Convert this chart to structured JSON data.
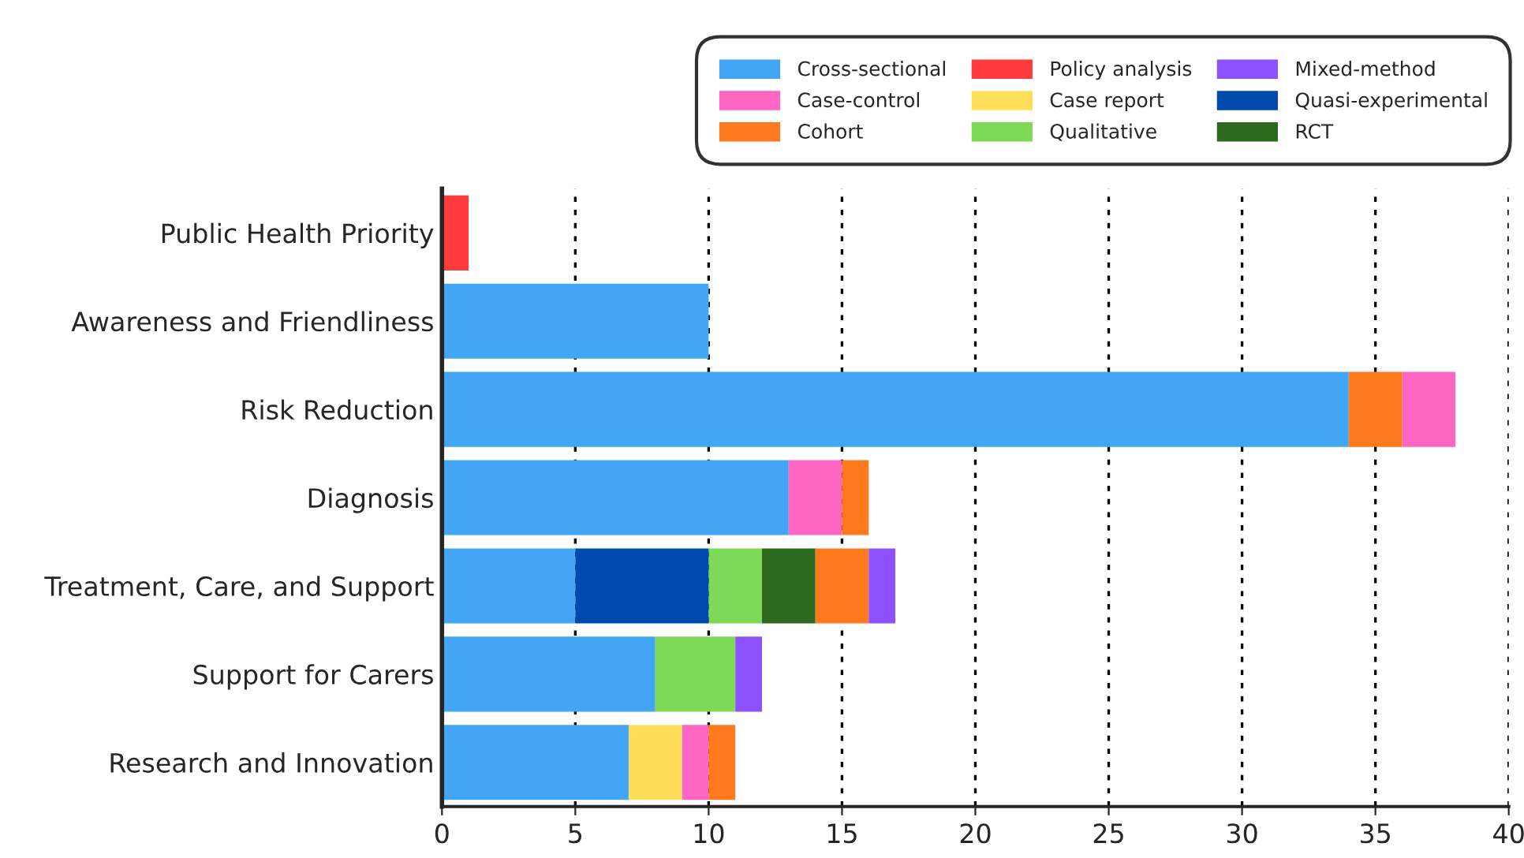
{
  "chart_data": {
    "type": "bar",
    "orientation": "horizontal",
    "categories": [
      "Public Health Priority",
      "Awareness and Friendliness",
      "Risk Reduction",
      "Diagnosis",
      "Treatment, Care, and Support",
      "Support for Carers",
      "Research and Innovation"
    ],
    "series": [
      {
        "name": "Cross-sectional",
        "color": "#42a5f5",
        "values": [
          null,
          10,
          34,
          13,
          5,
          8,
          7
        ],
        "base": [
          null,
          0,
          0,
          0,
          0,
          0,
          0
        ]
      },
      {
        "name": "Case-control",
        "color": "#ff66c4",
        "values": [
          null,
          null,
          2,
          2,
          null,
          null,
          1
        ],
        "base": [
          null,
          null,
          36,
          13,
          null,
          null,
          9
        ]
      },
      {
        "name": "Cohort",
        "color": "#ff7a1f",
        "values": [
          null,
          null,
          2,
          1,
          2,
          null,
          1
        ],
        "base": [
          null,
          null,
          34,
          15,
          14,
          null,
          10
        ]
      },
      {
        "name": "Policy analysis",
        "color": "#ff3b3b",
        "values": [
          1,
          null,
          null,
          null,
          null,
          null,
          null
        ],
        "base": [
          0,
          null,
          null,
          null,
          null,
          null,
          null
        ]
      },
      {
        "name": "Case report",
        "color": "#ffde59",
        "values": [
          null,
          null,
          null,
          null,
          null,
          null,
          2
        ],
        "base": [
          null,
          null,
          null,
          null,
          null,
          null,
          7
        ]
      },
      {
        "name": "Qualitative",
        "color": "#7ed957",
        "values": [
          null,
          null,
          null,
          null,
          2,
          3,
          null
        ],
        "base": [
          null,
          null,
          null,
          null,
          10,
          8,
          null
        ]
      },
      {
        "name": "Mixed-method",
        "color": "#8c52ff",
        "values": [
          null,
          null,
          null,
          null,
          1,
          1,
          null
        ],
        "base": [
          null,
          null,
          null,
          null,
          16,
          11,
          null
        ]
      },
      {
        "name": "Quasi-experimental",
        "color": "#004aad",
        "values": [
          null,
          null,
          null,
          null,
          5,
          null,
          null
        ],
        "base": [
          null,
          null,
          null,
          null,
          5,
          null,
          null
        ]
      },
      {
        "name": "RCT",
        "color": "#2d6a1f",
        "values": [
          null,
          null,
          null,
          null,
          2,
          null,
          null
        ],
        "base": [
          null,
          null,
          null,
          null,
          12,
          null,
          null
        ]
      }
    ],
    "xlim": [
      0,
      40
    ],
    "xticks": [
      0,
      5,
      10,
      15,
      20,
      25,
      30,
      35,
      40
    ],
    "grid": "x",
    "legend": "top"
  }
}
